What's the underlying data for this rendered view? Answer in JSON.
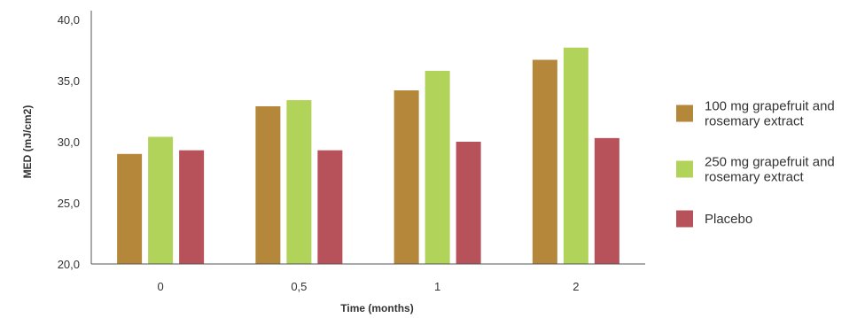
{
  "chart_data": {
    "type": "bar",
    "xlabel": "Time (months)",
    "ylabel": "MED (mJ/cm2)",
    "ylim": [
      20,
      40
    ],
    "yticks": [
      "20,0",
      "25,0",
      "30,0",
      "35,0",
      "40,0"
    ],
    "ytick_values": [
      20,
      25,
      30,
      35,
      40
    ],
    "categories": [
      "0",
      "0,5",
      "1",
      "2"
    ],
    "series": [
      {
        "name_lines": [
          "100 mg grapefruit and",
          "rosemary extract"
        ],
        "color": "#b5873a",
        "values": [
          29.0,
          32.9,
          34.2,
          36.7
        ]
      },
      {
        "name_lines": [
          "250 mg grapefruit and",
          "rosemary extract"
        ],
        "color": "#b1d35a",
        "values": [
          30.4,
          33.4,
          35.8,
          37.7
        ]
      },
      {
        "name_lines": [
          "Placebo"
        ],
        "color": "#b8525a",
        "values": [
          29.3,
          29.3,
          30.0,
          30.3
        ]
      }
    ],
    "grid": false,
    "legend_position": "right"
  }
}
